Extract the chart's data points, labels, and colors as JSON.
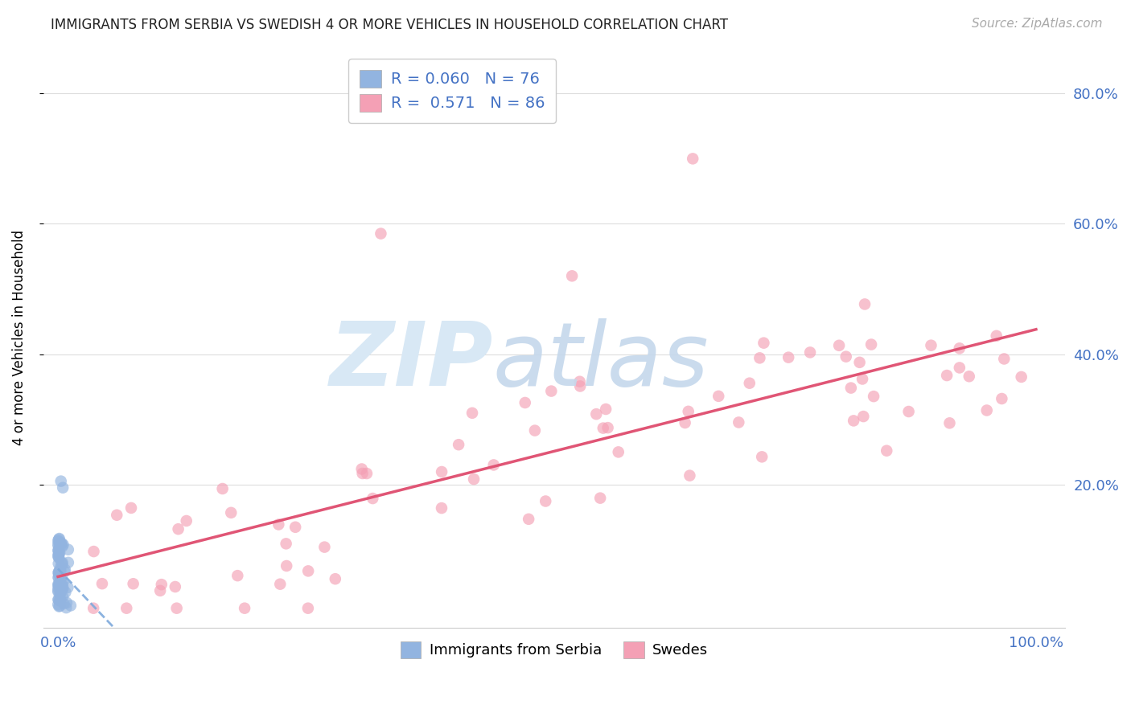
{
  "title": "IMMIGRANTS FROM SERBIA VS SWEDISH 4 OR MORE VEHICLES IN HOUSEHOLD CORRELATION CHART",
  "source": "Source: ZipAtlas.com",
  "ylabel": "4 or more Vehicles in Household",
  "legend_R1": "0.060",
  "legend_N1": "76",
  "legend_R2": "0.571",
  "legend_N2": "86",
  "legend_label1": "Immigrants from Serbia",
  "legend_label2": "Swedes",
  "color_blue": "#92b4e0",
  "color_pink": "#f4a0b5",
  "line_blue_color": "#7faadc",
  "line_pink_color": "#e05575",
  "grid_color": "#dddddd",
  "title_fontsize": 12,
  "tick_fontsize": 13,
  "ylabel_fontsize": 12
}
